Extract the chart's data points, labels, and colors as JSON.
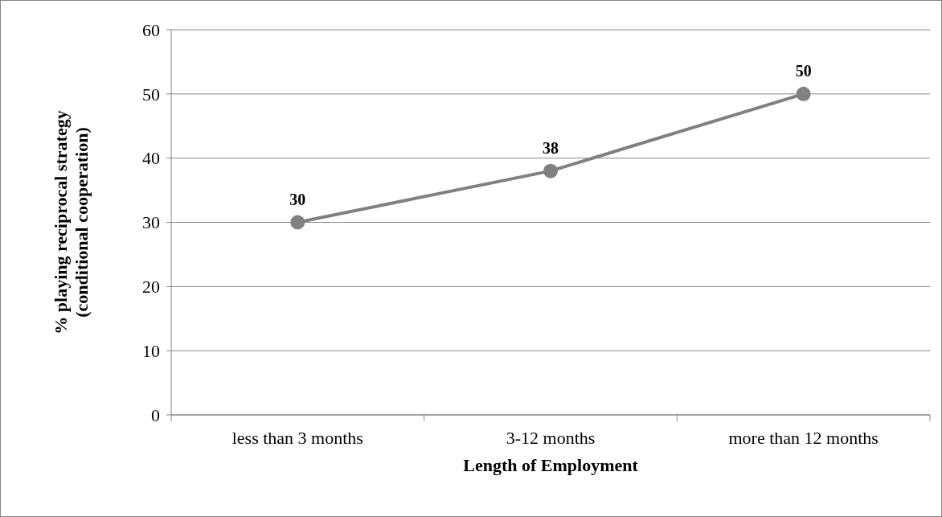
{
  "chart_data": {
    "type": "line",
    "xlabel": "Length of Employment",
    "ylabel": "% playing reciprocal strategy\n(conditional cooperation)",
    "categories": [
      "less than 3 months",
      "3-12 months",
      "more than 12 months"
    ],
    "series": [
      {
        "color": "#808080",
        "values": [
          30,
          38,
          50
        ]
      }
    ],
    "ylim": [
      0,
      60
    ],
    "yticks": [
      0,
      10,
      20,
      30,
      40,
      50,
      60
    ],
    "grid": "y",
    "marker": "circle",
    "line_style": "solid",
    "data_labels": true
  }
}
